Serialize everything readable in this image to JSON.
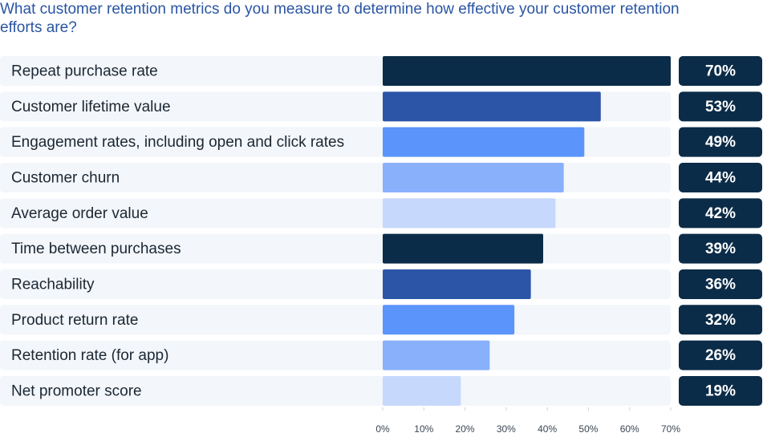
{
  "chart_data": {
    "type": "bar",
    "orientation": "horizontal",
    "title": "What customer retention metrics do you measure to determine how effective your customer retention efforts are?",
    "categories": [
      "Repeat purchase rate",
      "Customer lifetime value",
      "Engagement rates, including open and click rates",
      "Customer churn",
      "Average order value",
      "Time between purchases",
      "Reachability",
      "Product return rate",
      "Retention rate (for app)",
      "Net promoter score"
    ],
    "values": [
      70,
      53,
      49,
      44,
      42,
      39,
      36,
      32,
      26,
      19
    ],
    "value_labels": [
      "70%",
      "53%",
      "49%",
      "44%",
      "42%",
      "39%",
      "36%",
      "32%",
      "26%",
      "19%"
    ],
    "colors": [
      "#0b2c48",
      "#2c55a8",
      "#5b94fb",
      "#89b0fb",
      "#c7d8fd",
      "#0b2c48",
      "#2c55a8",
      "#5b94fb",
      "#89b0fb",
      "#c7d8fd"
    ],
    "label_box_color": "#0b2c48",
    "xlim": [
      0,
      70
    ],
    "xticks": [
      {
        "value": 0,
        "label": "0%"
      },
      {
        "value": 10,
        "label": "10%"
      },
      {
        "value": 20,
        "label": "20%"
      },
      {
        "value": 30,
        "label": "30%"
      },
      {
        "value": 40,
        "label": "40%"
      },
      {
        "value": 50,
        "label": "50%"
      },
      {
        "value": 60,
        "label": "60%"
      },
      {
        "value": 70,
        "label": "70%"
      }
    ]
  }
}
